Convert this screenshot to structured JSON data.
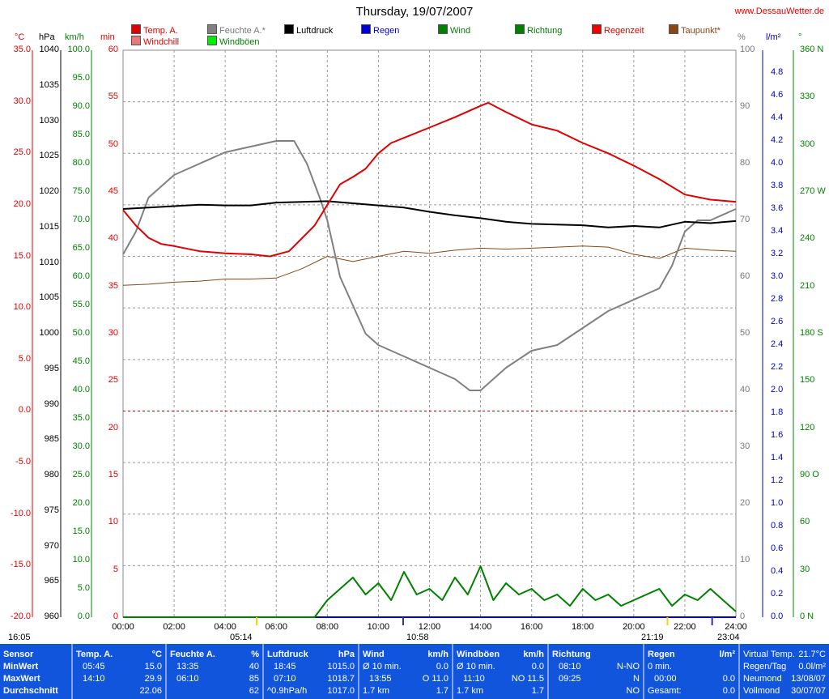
{
  "title": "Thursday, 19/07/2007",
  "site": "www.DessauWetter.de",
  "legend": [
    {
      "label": "Temp. A.",
      "color": "#e00000"
    },
    {
      "label": "Windchill",
      "color": "#e87878"
    },
    {
      "label": "Feuchte A.*",
      "color": "#808080"
    },
    {
      "label": "Windböen",
      "color": "#00ee00"
    },
    {
      "label": "Luftdruck",
      "color": "#000000"
    },
    {
      "label": "Regen",
      "color": "#0000dd"
    },
    {
      "label": "Wind",
      "color": "#008000"
    },
    {
      "label": "Richtung",
      "color": "#008000"
    },
    {
      "label": "Regenzeit",
      "color": "#ee0000"
    },
    {
      "label": "Taupunkt*",
      "color": "#8b4513"
    }
  ],
  "units": {
    "temp": "°C",
    "pressure": "hPa",
    "wind": "km/h",
    "min": "min",
    "humidity": "%",
    "rain": "l/m²",
    "direction": "°"
  },
  "axes": {
    "temp": [
      "35.0",
      "30.0",
      "25.0",
      "20.0",
      "15.0",
      "10.0",
      "5.0",
      "0.0",
      "-5.0",
      "-10.0",
      "-15.0",
      "-20.0"
    ],
    "pressure": [
      "1040",
      "1035",
      "1030",
      "1025",
      "1020",
      "1015",
      "1010",
      "1005",
      "1000",
      "995",
      "990",
      "985",
      "980",
      "975",
      "970",
      "965",
      "960"
    ],
    "wind": [
      "100.0",
      "95.0",
      "90.0",
      "85.0",
      "80.0",
      "75.0",
      "70.0",
      "65.0",
      "60.0",
      "55.0",
      "50.0",
      "45.0",
      "40.0",
      "35.0",
      "30.0",
      "25.0",
      "20.0",
      "15.0",
      "10.0",
      "5.0",
      "0.0"
    ],
    "min": [
      "60",
      "55",
      "50",
      "45",
      "40",
      "35",
      "30",
      "25",
      "20",
      "15",
      "10",
      "5",
      "0"
    ],
    "humidity": [
      "100",
      "90",
      "80",
      "70",
      "60",
      "50",
      "40",
      "30",
      "20",
      "10",
      "0"
    ],
    "rain": [
      "4.8",
      "4.6",
      "4.4",
      "4.2",
      "4.0",
      "3.8",
      "3.6",
      "3.4",
      "3.2",
      "3.0",
      "2.8",
      "2.6",
      "2.4",
      "2.2",
      "2.0",
      "1.8",
      "1.6",
      "1.4",
      "1.2",
      "1.0",
      "0.8",
      "0.6",
      "0.4",
      "0.2",
      "0.0"
    ],
    "direction": [
      "360 N",
      "330",
      "300",
      "270 W",
      "240",
      "210",
      "180 S",
      "150",
      "120",
      "90 O",
      "60",
      "30",
      "0 N"
    ],
    "time": [
      "00:00",
      "02:00",
      "04:00",
      "06:00",
      "08:00",
      "10:00",
      "12:00",
      "14:00",
      "16:00",
      "18:00",
      "20:00",
      "22:00",
      "24:00"
    ]
  },
  "markers": {
    "start": "16:05",
    "sunrise": "05:14",
    "moonrise": "10:58",
    "sunset": "21:19",
    "moonset": "23:04"
  },
  "chart_data": {
    "type": "line",
    "title": "Thursday, 19/07/2007",
    "x_unit": "hours",
    "series": [
      {
        "name": "Temp. A.",
        "unit": "°C",
        "x": [
          0,
          0.5,
          1,
          1.5,
          2,
          3,
          4,
          5,
          5.75,
          6.5,
          7.5,
          8,
          8.5,
          9,
          9.5,
          10,
          10.5,
          11,
          12,
          13,
          14,
          14.3,
          15,
          16,
          17,
          18,
          19,
          20,
          21,
          22,
          23,
          24
        ],
        "values": [
          19.5,
          18.0,
          16.8,
          16.2,
          16.0,
          15.5,
          15.3,
          15.2,
          15.0,
          15.5,
          18.0,
          20.0,
          22.0,
          22.7,
          23.5,
          25.0,
          26.0,
          26.5,
          27.5,
          28.5,
          29.6,
          29.9,
          29.0,
          27.8,
          27.2,
          26.0,
          25.0,
          23.8,
          22.5,
          21.0,
          20.5,
          20.3
        ]
      },
      {
        "name": "Feuchte A.*",
        "unit": "%",
        "x": [
          0,
          0.5,
          1,
          1.5,
          2,
          3,
          4,
          5,
          6,
          6.7,
          7.2,
          7.7,
          8,
          8.5,
          9,
          9.5,
          10,
          11,
          12,
          13,
          13.58,
          14,
          15,
          16,
          17,
          18,
          19,
          20,
          21,
          21.5,
          22,
          22.5,
          23,
          24
        ],
        "values": [
          64,
          68,
          74,
          76,
          78,
          80,
          82,
          83,
          84,
          84,
          80,
          74,
          70,
          60,
          55,
          50,
          48,
          46,
          44,
          42,
          40,
          40,
          44,
          47,
          48,
          51,
          54,
          56,
          58,
          62,
          68,
          70,
          70,
          72
        ]
      },
      {
        "name": "Luftdruck",
        "unit": "hPa",
        "x": [
          0,
          1,
          2,
          3,
          4,
          5,
          6,
          7,
          8,
          9,
          10,
          11,
          12,
          13,
          14,
          15,
          16,
          17,
          18,
          19,
          20,
          21,
          22,
          23,
          24
        ],
        "values": [
          1017.6,
          1017.8,
          1018.0,
          1018.2,
          1018.1,
          1018.1,
          1018.5,
          1018.6,
          1018.7,
          1018.4,
          1018.1,
          1017.8,
          1017.2,
          1016.7,
          1016.3,
          1015.8,
          1015.5,
          1015.4,
          1015.3,
          1015.0,
          1015.2,
          1015.0,
          1015.8,
          1015.6,
          1015.9
        ]
      },
      {
        "name": "Taupunkt*",
        "unit": "°C",
        "x": [
          0,
          1,
          2,
          3,
          4,
          5,
          6,
          7,
          8,
          9,
          10,
          11,
          12,
          13,
          14,
          15,
          16,
          17,
          18,
          19,
          20,
          21,
          22,
          23,
          24
        ],
        "values": [
          12.2,
          12.3,
          12.5,
          12.6,
          12.8,
          12.8,
          12.9,
          13.8,
          15.0,
          14.5,
          15.0,
          15.5,
          15.3,
          15.6,
          15.8,
          15.7,
          15.8,
          15.9,
          16.0,
          15.9,
          15.2,
          14.8,
          15.8,
          15.6,
          15.5
        ]
      },
      {
        "name": "Wind",
        "unit": "km/h",
        "x": [
          0,
          7.5,
          8,
          8.5,
          9,
          9.5,
          10,
          10.5,
          11,
          11.5,
          12,
          12.5,
          13,
          13.5,
          14,
          14.5,
          15,
          15.5,
          16,
          16.5,
          17,
          17.5,
          18,
          18.5,
          19,
          19.5,
          20,
          20.5,
          21,
          21.5,
          22,
          22.5,
          23,
          23.5,
          24
        ],
        "values": [
          0,
          0,
          3,
          5,
          7,
          4,
          6,
          3,
          8,
          4,
          5,
          3,
          7,
          4,
          9,
          3,
          6,
          4,
          5,
          3,
          4,
          2,
          5,
          3,
          4,
          2,
          3,
          4,
          5,
          2,
          4,
          3,
          5,
          3,
          1
        ]
      },
      {
        "name": "Regen",
        "unit": "l/m²",
        "x": [
          0,
          24
        ],
        "values": [
          0,
          0
        ]
      }
    ],
    "ranges": {
      "temp": [
        -20,
        35
      ],
      "pressure": [
        960,
        1040
      ],
      "wind": [
        0,
        100
      ],
      "min": [
        0,
        60
      ],
      "humidity": [
        0,
        100
      ],
      "rain": [
        0,
        5
      ],
      "direction": [
        0,
        360
      ]
    },
    "grid": true
  },
  "panel": {
    "sensor": {
      "head": "Sensor",
      "min": "MinWert",
      "max": "MaxWert",
      "avg": "Durchschnitt"
    },
    "temp": {
      "head": "Temp. A.",
      "unit": "°C",
      "min_time": "05:45",
      "min_val": "15.0",
      "max_time": "14:10",
      "max_val": "29.9",
      "avg": "22.06"
    },
    "humid": {
      "head": "Feuchte A.",
      "unit": "%",
      "min_time": "13:35",
      "min_val": "40",
      "max_time": "06:10",
      "max_val": "85",
      "avg": "62"
    },
    "press": {
      "head": "Luftdruck",
      "unit": "hPa",
      "min_time": "18:45",
      "min_val": "1015.0",
      "max_time": "07:10",
      "max_val": "1018.7",
      "avg_label": "^0.9hPa/h",
      "avg": "1017.0"
    },
    "wind": {
      "head": "Wind",
      "unit": "km/h",
      "r1a": "Ø 10 min.",
      "r1b": "0.0",
      "r2a": "13:55",
      "r2b": "O 11.0",
      "r3a": "1.7 km",
      "r3b": "1.7"
    },
    "gust": {
      "head": "Windböen",
      "unit": "km/h",
      "r1a": "Ø 10 min.",
      "r1b": "0.0",
      "r2a": "11:10",
      "r2b": "NO 11.5",
      "r3a": "1.7 km",
      "r3b": "1.7"
    },
    "dir": {
      "head": "Richtung",
      "r1a": "08:10",
      "r1b": "N-NO",
      "r2a": "09:25",
      "r2b": "N",
      "r3b": "NO"
    },
    "rain": {
      "head": "Regen",
      "unit": "l/m²",
      "r1a": "0 min.",
      "r2a": "00:00",
      "r2b": "0.0",
      "r3a": "Gesamt:",
      "r3b": "0.0"
    },
    "extra": {
      "r0a": "Virtual Temp.",
      "r0b": "21.7°C",
      "r1a": "Regen/Tag",
      "r1b": "0.0l/m²",
      "r2a": "Neumond",
      "r2b": "13/08/07",
      "r3a": "Vollmond",
      "r3b": "30/07/07"
    }
  }
}
